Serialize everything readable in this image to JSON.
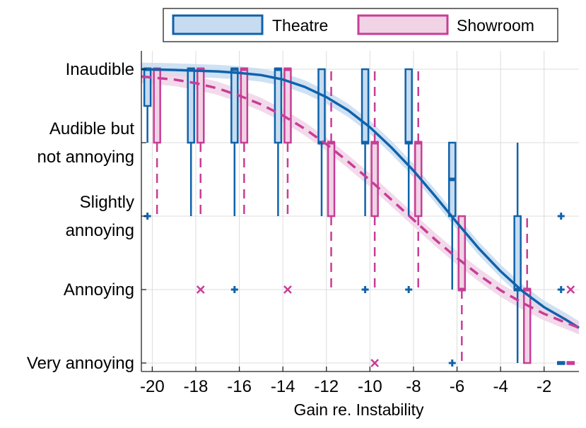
{
  "chart_data": {
    "type": "box",
    "xlabel": "Gain re. Instability",
    "ylabel": "",
    "xlim": [
      -20.5,
      -0.4
    ],
    "ylim": [
      -0.15,
      4.3
    ],
    "x_ticks": [
      -20,
      -18,
      -16,
      -14,
      -12,
      -10,
      -8,
      -6,
      -4,
      -2
    ],
    "x_tick_labels": [
      "-20",
      "-18",
      "-16",
      "-14",
      "-12",
      "-10",
      "-8",
      "-6",
      "-4",
      "-2"
    ],
    "y_ticks": [
      {
        "value": 4,
        "lines": [
          "Inaudible"
        ]
      },
      {
        "value": 3,
        "lines": [
          "Audible but",
          "not annoying"
        ]
      },
      {
        "value": 2,
        "lines": [
          "Slightly",
          "annoying"
        ]
      },
      {
        "value": 1,
        "lines": [
          "Annoying"
        ]
      },
      {
        "value": 0,
        "lines": [
          "Very annoying"
        ]
      }
    ],
    "grid": true,
    "legend_position": "top",
    "series": [
      {
        "name": "Theatre",
        "color": "#0f62ab",
        "fill": "#c7dcf0",
        "line_style": "solid",
        "offset": -0.22,
        "fit_x": [
          -20.5,
          -19,
          -18,
          -17,
          -16,
          -15,
          -14,
          -13,
          -12,
          -11,
          -10,
          -9,
          -8,
          -7,
          -6,
          -5,
          -4,
          -3,
          -2,
          -1,
          -0.4
        ],
        "fit_y": [
          4.0,
          3.99,
          3.98,
          3.97,
          3.95,
          3.92,
          3.86,
          3.76,
          3.62,
          3.44,
          3.21,
          2.93,
          2.62,
          2.27,
          1.91,
          1.56,
          1.25,
          0.98,
          0.76,
          0.59,
          0.48
        ],
        "fit_band": 0.09,
        "boxes": [
          {
            "x": -20,
            "q1": 3.5,
            "q3": 4.0,
            "median": 4.0,
            "whisker_low": 3.0,
            "whisker_high": 4.0,
            "outliers": [
              2.0
            ],
            "outlier_marker": "+"
          },
          {
            "x": -18,
            "q1": 3.0,
            "q3": 4.0,
            "median": 4.0,
            "whisker_low": 2.0,
            "whisker_high": 4.0,
            "outliers": [],
            "outlier_marker": "+"
          },
          {
            "x": -16,
            "q1": 3.0,
            "q3": 4.0,
            "median": 4.0,
            "whisker_low": 2.0,
            "whisker_high": 4.0,
            "outliers": [
              1.0
            ],
            "outlier_marker": "+"
          },
          {
            "x": -14,
            "q1": 3.0,
            "q3": 4.0,
            "median": 4.0,
            "whisker_low": 2.0,
            "whisker_high": 4.0,
            "outliers": [],
            "outlier_marker": "+"
          },
          {
            "x": -12,
            "q1": 3.0,
            "q3": 4.0,
            "median": 3.0,
            "whisker_low": 2.0,
            "whisker_high": 4.0,
            "outliers": [],
            "outlier_marker": "+"
          },
          {
            "x": -10,
            "q1": 3.0,
            "q3": 4.0,
            "median": 3.0,
            "whisker_low": 2.0,
            "whisker_high": 4.0,
            "outliers": [
              1.0
            ],
            "outlier_marker": "+"
          },
          {
            "x": -8,
            "q1": 3.0,
            "q3": 4.0,
            "median": 3.0,
            "whisker_low": 2.0,
            "whisker_high": 4.0,
            "outliers": [
              1.0
            ],
            "outlier_marker": "+"
          },
          {
            "x": -6,
            "q1": 2.0,
            "q3": 3.0,
            "median": 2.5,
            "whisker_low": 1.0,
            "whisker_high": 3.0,
            "outliers": [
              0.0
            ],
            "outlier_marker": "+"
          },
          {
            "x": -3,
            "q1": 1.0,
            "q3": 2.0,
            "median": 1.0,
            "whisker_low": 0.0,
            "whisker_high": 3.0,
            "outliers": [],
            "outlier_marker": "+"
          },
          {
            "x": -1,
            "q1": 0.0,
            "q3": 0.0,
            "median": 0.0,
            "whisker_low": 0.0,
            "whisker_high": 0.0,
            "outliers": [
              2.0,
              1.0
            ],
            "outlier_marker": "+"
          }
        ]
      },
      {
        "name": "Showroom",
        "color": "#c83d96",
        "fill": "#f0d4e6",
        "line_style": "dashed",
        "offset": 0.22,
        "fit_x": [
          -20.5,
          -19,
          -18,
          -17,
          -16,
          -15,
          -14,
          -13,
          -12,
          -11,
          -10,
          -9,
          -8,
          -7,
          -6,
          -5,
          -4,
          -3,
          -2,
          -1,
          -0.4
        ],
        "fit_y": [
          3.9,
          3.86,
          3.81,
          3.74,
          3.64,
          3.52,
          3.37,
          3.19,
          2.98,
          2.74,
          2.49,
          2.22,
          1.95,
          1.68,
          1.43,
          1.2,
          0.99,
          0.82,
          0.67,
          0.55,
          0.48
        ],
        "fit_band": 0.09,
        "boxes": [
          {
            "x": -20,
            "q1": 3.0,
            "q3": 4.0,
            "median": 4.0,
            "whisker_low": 2.0,
            "whisker_high": 4.0,
            "outliers": [],
            "outlier_marker": "x"
          },
          {
            "x": -18,
            "q1": 3.0,
            "q3": 4.0,
            "median": 4.0,
            "whisker_low": 2.0,
            "whisker_high": 4.0,
            "outliers": [
              1.0
            ],
            "outlier_marker": "x"
          },
          {
            "x": -16,
            "q1": 3.0,
            "q3": 4.0,
            "median": 4.0,
            "whisker_low": 2.0,
            "whisker_high": 4.0,
            "outliers": [],
            "outlier_marker": "x"
          },
          {
            "x": -14,
            "q1": 3.0,
            "q3": 4.0,
            "median": 4.0,
            "whisker_low": 2.0,
            "whisker_high": 4.0,
            "outliers": [
              1.0
            ],
            "outlier_marker": "x"
          },
          {
            "x": -12,
            "q1": 2.0,
            "q3": 3.0,
            "median": 3.0,
            "whisker_low": 1.0,
            "whisker_high": 4.0,
            "outliers": [],
            "outlier_marker": "x"
          },
          {
            "x": -10,
            "q1": 2.0,
            "q3": 3.0,
            "median": 3.0,
            "whisker_low": 1.0,
            "whisker_high": 4.0,
            "outliers": [
              0.0
            ],
            "outlier_marker": "x"
          },
          {
            "x": -8,
            "q1": 2.0,
            "q3": 3.0,
            "median": 3.0,
            "whisker_low": 1.0,
            "whisker_high": 4.0,
            "outliers": [],
            "outlier_marker": "x"
          },
          {
            "x": -6,
            "q1": 1.0,
            "q3": 2.0,
            "median": 1.0,
            "whisker_low": 0.0,
            "whisker_high": 2.0,
            "outliers": [],
            "outlier_marker": "x"
          },
          {
            "x": -3,
            "q1": 0.0,
            "q3": 1.0,
            "median": 1.0,
            "whisker_low": 0.0,
            "whisker_high": 2.0,
            "outliers": [],
            "outlier_marker": "x"
          },
          {
            "x": -1,
            "q1": 0.0,
            "q3": 0.0,
            "median": 0.0,
            "whisker_low": 0.0,
            "whisker_high": 0.0,
            "outliers": [
              1.0
            ],
            "outlier_marker": "x"
          }
        ]
      }
    ]
  }
}
